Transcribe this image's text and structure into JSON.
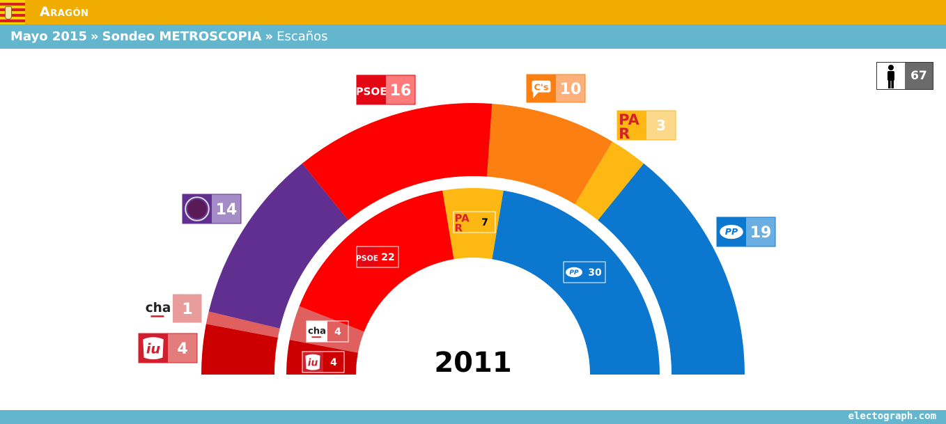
{
  "header": {
    "region": "Aragón",
    "survey_date": "Mayo 2015",
    "separator": "»",
    "pollster": "Sondeo METROSCOPIA",
    "metric": "Escaños"
  },
  "total_seats": "67",
  "footer": {
    "credit": "electograph.com"
  },
  "chart_data": [
    {
      "type": "half-donut",
      "title": "",
      "ring": "outer",
      "series": [
        {
          "name": "IU",
          "value": 4,
          "color": "#cc0000"
        },
        {
          "name": "CHA",
          "value": 1,
          "color": "#e06060"
        },
        {
          "name": "Podemos",
          "value": 14,
          "color": "#612f8f"
        },
        {
          "name": "PSOE",
          "value": 16,
          "color": "#ff0000"
        },
        {
          "name": "C's",
          "value": 10,
          "color": "#fb8011"
        },
        {
          "name": "PAR",
          "value": 3,
          "color": "#fdb813"
        },
        {
          "name": "PP",
          "value": 19,
          "color": "#0b77cf"
        }
      ]
    },
    {
      "type": "half-donut",
      "title": "2011",
      "ring": "inner",
      "series": [
        {
          "name": "IU",
          "value": 4,
          "color": "#cc0000"
        },
        {
          "name": "CHA",
          "value": 4,
          "color": "#e06060"
        },
        {
          "name": "PSOE",
          "value": 22,
          "color": "#ff0000"
        },
        {
          "name": "PAR",
          "value": 7,
          "color": "#fdb813"
        },
        {
          "name": "PP",
          "value": 30,
          "color": "#0b77cf"
        }
      ]
    }
  ],
  "legend_colors": {
    "PSOE": {
      "logo": "#e30613",
      "value": "#ff7a7a"
    },
    "C's": {
      "logo": "#fb8011",
      "value": "#fdb07a"
    },
    "PAR": {
      "logo": "#fdb813",
      "value": "#fcd98a"
    },
    "PP": {
      "logo": "#0b77cf",
      "value": "#6aaee2"
    },
    "Podemos": {
      "logo": "#612f8f",
      "value": "#a58cc7"
    },
    "CHA": {
      "logo": "#ffffff",
      "value": "#e89c9c"
    },
    "IU": {
      "logo": "#d0202e",
      "value": "#e47c7c"
    }
  }
}
